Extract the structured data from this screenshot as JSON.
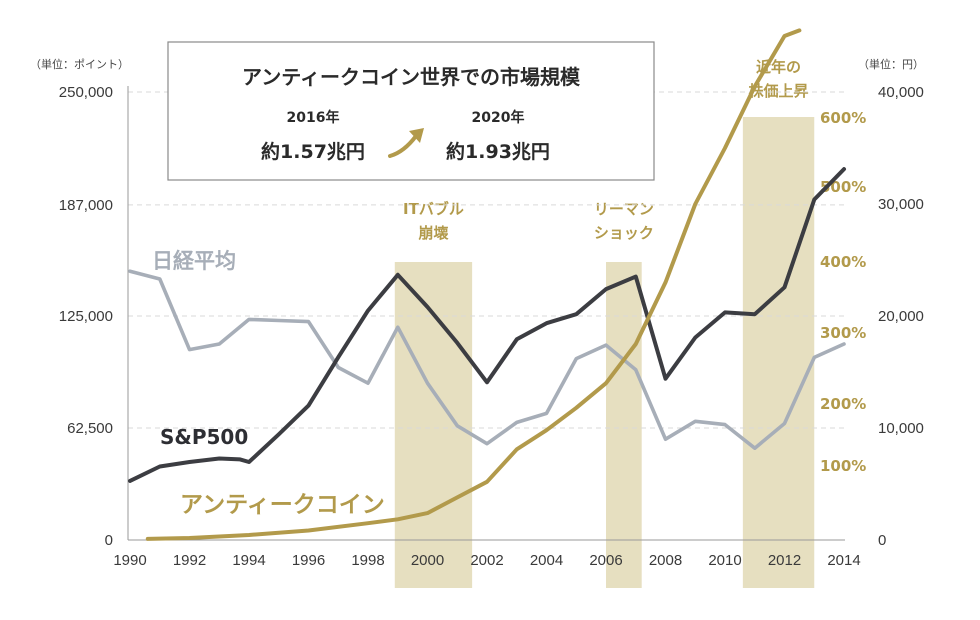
{
  "chart_data": {
    "type": "line",
    "title": "アンティークコイン世界での市場規模",
    "left_unit": "（単位：ポイント）",
    "right_unit": "（単位：円）",
    "left_ticks": [
      "250,000",
      "187,000",
      "125,000",
      "62,500",
      "0"
    ],
    "right_ticks": [
      "40,000",
      "30,000",
      "20,000",
      "10,000",
      "0"
    ],
    "pct_ticks": [
      "600%",
      "500%",
      "400%",
      "300%",
      "200%",
      "100%"
    ],
    "x_ticks": [
      "1990",
      "1992",
      "1994",
      "1996",
      "1998",
      "2000",
      "2002",
      "2004",
      "2006",
      "2008",
      "2010",
      "2012",
      "2014"
    ],
    "ylim_left": [
      0,
      250000
    ],
    "ylim_right": [
      0,
      40000
    ],
    "xlim": [
      1990,
      2014
    ],
    "grid": "dashed-horizontal",
    "bands": [
      {
        "label": [
          "ITバブル",
          "崩壊"
        ],
        "x_start": 1998.9,
        "x_end": 2001.5
      },
      {
        "label": [
          "リーマン",
          "ショック"
        ],
        "x_start": 2006.0,
        "x_end": 2007.2
      },
      {
        "label": [
          "近年の",
          "株価上昇"
        ],
        "x_start": 2010.6,
        "x_end": 2013.0
      }
    ],
    "series": [
      {
        "name": "S&P500",
        "axis": "left",
        "color": "#3c3d42",
        "points": [
          [
            1990,
            33000
          ],
          [
            1991,
            41000
          ],
          [
            1992,
            43500
          ],
          [
            1993,
            45500
          ],
          [
            1993.7,
            45000
          ],
          [
            1994,
            43500
          ],
          [
            1995,
            59000
          ],
          [
            1996,
            75000
          ],
          [
            1997,
            102000
          ],
          [
            1998,
            128000
          ],
          [
            1999,
            148000
          ],
          [
            2000,
            130000
          ],
          [
            2001,
            110000
          ],
          [
            2002,
            88000
          ],
          [
            2003,
            112000
          ],
          [
            2004,
            121000
          ],
          [
            2005,
            126000
          ],
          [
            2006,
            140000
          ],
          [
            2007,
            147000
          ],
          [
            2008,
            90000
          ],
          [
            2009,
            113000
          ],
          [
            2010,
            127000
          ],
          [
            2011,
            126000
          ],
          [
            2012,
            141000
          ],
          [
            2013,
            190000
          ],
          [
            2014,
            207000
          ]
        ]
      },
      {
        "name": "日経平均",
        "axis": "right",
        "color": "#a7aeb8",
        "points": [
          [
            1990,
            24000
          ],
          [
            1991,
            23300
          ],
          [
            1992,
            17000
          ],
          [
            1993,
            17500
          ],
          [
            1994,
            19700
          ],
          [
            1995,
            19600
          ],
          [
            1996,
            19500
          ],
          [
            1997,
            15400
          ],
          [
            1998,
            14000
          ],
          [
            1999,
            19000
          ],
          [
            2000,
            14000
          ],
          [
            2001,
            10200
          ],
          [
            2002,
            8600
          ],
          [
            2003,
            10500
          ],
          [
            2004,
            11300
          ],
          [
            2005,
            16200
          ],
          [
            2006,
            17400
          ],
          [
            2007,
            15200
          ],
          [
            2008,
            9000
          ],
          [
            2009,
            10600
          ],
          [
            2010,
            10300
          ],
          [
            2011,
            8200
          ],
          [
            2012,
            10400
          ],
          [
            2013,
            16300
          ],
          [
            2014,
            17500
          ]
        ]
      },
      {
        "name": "アンティークコイン",
        "axis": "right",
        "color": "#b29a4b",
        "points": [
          [
            1990.6,
            100
          ],
          [
            1992,
            180
          ],
          [
            1994,
            450
          ],
          [
            1996,
            850
          ],
          [
            1998,
            1500
          ],
          [
            1999,
            1850
          ],
          [
            2000,
            2400
          ],
          [
            2001,
            3800
          ],
          [
            2002,
            5200
          ],
          [
            2003,
            8100
          ],
          [
            2004,
            9800
          ],
          [
            2005,
            11800
          ],
          [
            2006,
            14000
          ],
          [
            2007,
            17500
          ],
          [
            2008,
            23000
          ],
          [
            2009,
            30000
          ],
          [
            2010,
            35000
          ],
          [
            2011,
            40500
          ],
          [
            2012,
            45000
          ],
          [
            2012.5,
            45500
          ]
        ]
      }
    ],
    "info_box": {
      "year_start": "2016年",
      "value_start": "約1.57兆円",
      "year_end": "2020年",
      "value_end": "約1.93兆円"
    }
  }
}
